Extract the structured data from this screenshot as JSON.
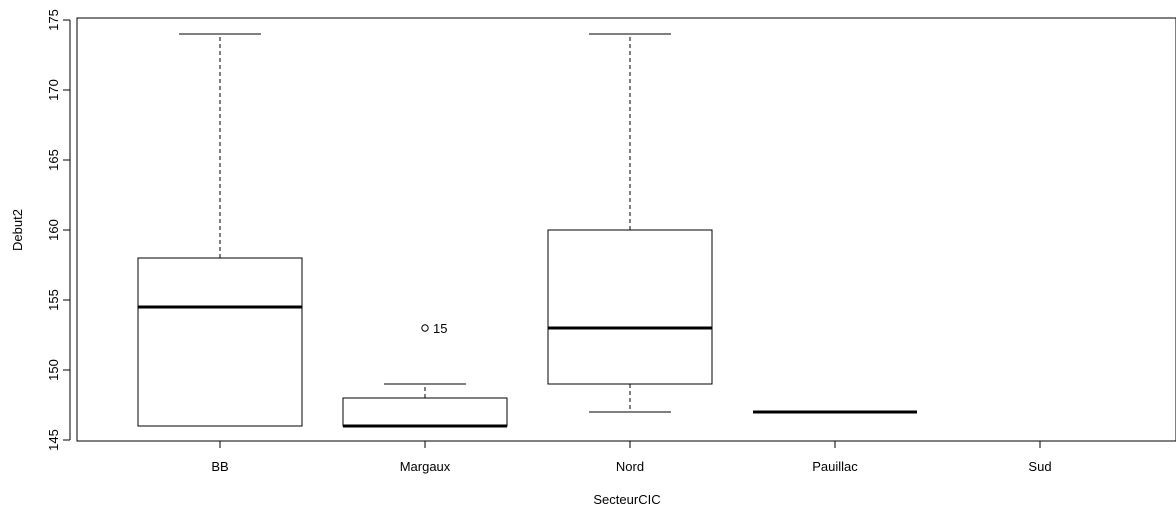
{
  "chart_data": {
    "type": "boxplot",
    "xlabel": "SecteurCIC",
    "ylabel": "Debut2",
    "ylim": [
      145,
      175
    ],
    "yticks": [
      145,
      150,
      155,
      160,
      165,
      170,
      175
    ],
    "categories": [
      "BB",
      "Margaux",
      "Nord",
      "Pauillac",
      "Sud"
    ],
    "boxes": [
      {
        "category": "BB",
        "whisker_low": 146,
        "q1": 146,
        "median": 154.5,
        "q3": 158,
        "whisker_high": 174,
        "outliers": []
      },
      {
        "category": "Margaux",
        "whisker_low": 146,
        "q1": 146,
        "median": 146,
        "q3": 148,
        "whisker_high": 149,
        "outliers": [
          {
            "value": 153,
            "label": "15"
          }
        ]
      },
      {
        "category": "Nord",
        "whisker_low": 147,
        "q1": 149,
        "median": 153,
        "q3": 160,
        "whisker_high": 174,
        "outliers": []
      },
      {
        "category": "Pauillac",
        "whisker_low": 147,
        "q1": 147,
        "median": 147,
        "q3": 147,
        "whisker_high": 147,
        "outliers": []
      },
      {
        "category": "Sud",
        "empty": true
      }
    ],
    "grid": false,
    "legend": "none"
  }
}
